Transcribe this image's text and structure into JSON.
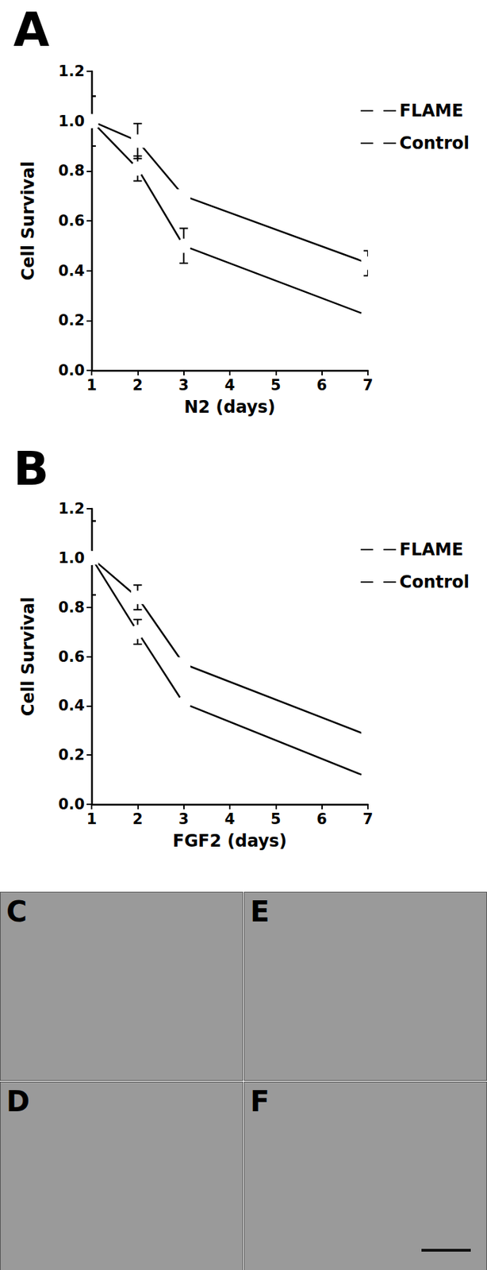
{
  "chart_data": [
    {
      "type": "line",
      "title": "A",
      "x_label": "N2 (days)",
      "y_label": "Cell Survival",
      "x": [
        1,
        2,
        3,
        7
      ],
      "series": [
        {
          "name": "FLAME",
          "color": "#000000",
          "marker": "square",
          "values": [
            1.0,
            0.92,
            0.7,
            0.43
          ],
          "errors": [
            0.1,
            0.07,
            0.01,
            0.05
          ]
        },
        {
          "name": "Control",
          "color": "#000000",
          "marker": "circle",
          "values": [
            1.0,
            0.81,
            0.5,
            0.22
          ],
          "errors": [
            0.1,
            0.05,
            0.07,
            0.01
          ]
        }
      ],
      "xlim": [
        1,
        7
      ],
      "xticks": [
        1,
        2,
        3,
        4,
        5,
        6,
        7
      ],
      "ylim": [
        0,
        1.2
      ],
      "yticks": [
        {
          "value": 0,
          "label": "0.0"
        },
        0.2,
        0.4,
        0.6,
        0.8,
        {
          "value": 1,
          "label": "1.0"
        },
        1.2
      ],
      "grid": false,
      "legend": "top-right"
    },
    {
      "type": "line",
      "title": "B",
      "x_label": "FGF2 (days)",
      "y_label": "Cell Survival",
      "x": [
        1,
        2,
        3,
        7
      ],
      "series": [
        {
          "name": "FLAME",
          "color": "#000000",
          "marker": "square",
          "values": [
            1.0,
            0.84,
            0.57,
            0.28
          ],
          "errors": [
            0.15,
            0.05,
            0.01,
            0.01
          ]
        },
        {
          "name": "Control",
          "color": "#000000",
          "marker": "circle",
          "values": [
            1.0,
            0.7,
            0.41,
            0.11
          ],
          "errors": [
            0.15,
            0.05,
            0.01,
            0.01
          ]
        }
      ],
      "xlim": [
        1,
        7
      ],
      "xticks": [
        1,
        2,
        3,
        4,
        5,
        6,
        7
      ],
      "ylim": [
        0,
        1.2
      ],
      "yticks": [
        {
          "value": 0,
          "label": "0.0"
        },
        0.2,
        0.4,
        0.6,
        0.8,
        {
          "value": 1,
          "label": "1.0"
        },
        1.2
      ],
      "grid": false,
      "legend": "top-right"
    }
  ],
  "photo_panels": {
    "labels": [
      "C",
      "E",
      "D",
      "F"
    ]
  }
}
